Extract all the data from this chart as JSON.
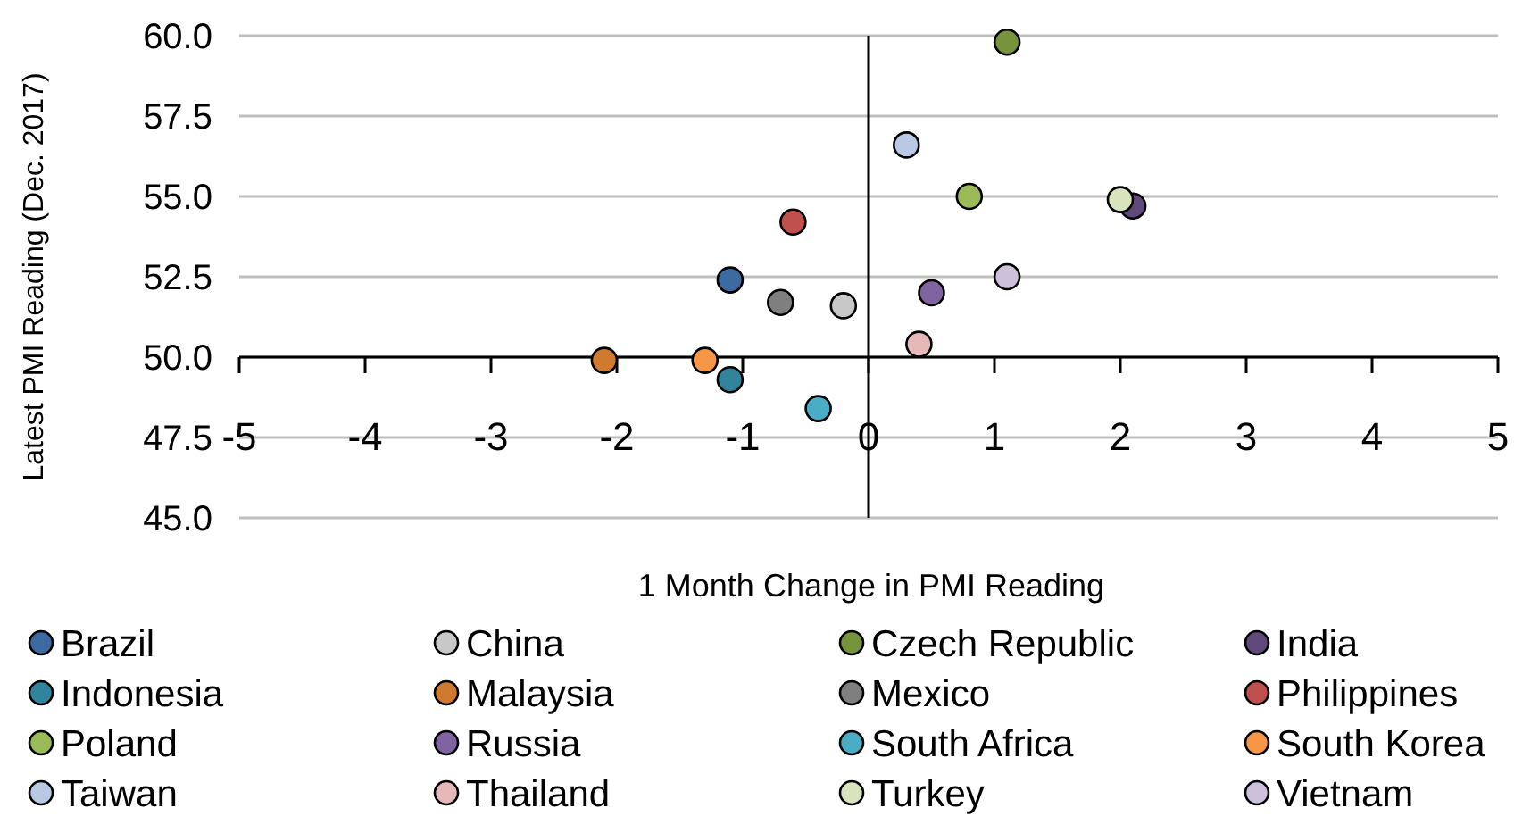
{
  "chart_data": {
    "type": "scatter",
    "xlabel": "1 Month Change in PMI Reading",
    "ylabel": "Latest PMI Reading (Dec. 2017)",
    "xlim": [
      -5,
      5
    ],
    "ylim": [
      45,
      60
    ],
    "xticks": [
      -5,
      -4,
      -3,
      -2,
      -1,
      0,
      1,
      2,
      3,
      4,
      5
    ],
    "yticks": [
      {
        "value": 45,
        "label": "45.0"
      },
      {
        "value": 47.5,
        "label": "47.5"
      },
      {
        "value": 50,
        "label": "50.0"
      },
      {
        "value": 52.5,
        "label": "52.5"
      },
      {
        "value": 55,
        "label": "55.0"
      },
      {
        "value": 57.5,
        "label": "57.5"
      },
      {
        "value": 60,
        "label": "60.0"
      }
    ],
    "grid": "y",
    "legend": "bottom",
    "marker": "circle",
    "series": [
      {
        "name": "Brazil",
        "color": "#3d6aa0",
        "x": [
          -1.1
        ],
        "values": [
          52.4
        ]
      },
      {
        "name": "China",
        "color": "#c8c8c8",
        "x": [
          -0.2
        ],
        "values": [
          51.6
        ]
      },
      {
        "name": "Czech Republic",
        "color": "#77933c",
        "x": [
          1.1
        ],
        "values": [
          59.8
        ]
      },
      {
        "name": "India",
        "color": "#604a7b",
        "x": [
          2.1
        ],
        "values": [
          54.7
        ]
      },
      {
        "name": "Indonesia",
        "color": "#31849b",
        "x": [
          -1.1
        ],
        "values": [
          49.3
        ]
      },
      {
        "name": "Malaysia",
        "color": "#d07a30",
        "x": [
          -2.1
        ],
        "values": [
          49.9
        ]
      },
      {
        "name": "Mexico",
        "color": "#7f7f7f",
        "x": [
          -0.7
        ],
        "values": [
          51.7
        ]
      },
      {
        "name": "Philippines",
        "color": "#c0504d",
        "x": [
          -0.6
        ],
        "values": [
          54.2
        ]
      },
      {
        "name": "Poland",
        "color": "#9bbb59",
        "x": [
          0.8
        ],
        "values": [
          55.0
        ]
      },
      {
        "name": "Russia",
        "color": "#8064a2",
        "x": [
          0.5
        ],
        "values": [
          52.0
        ]
      },
      {
        "name": "South Africa",
        "color": "#4bacc6",
        "x": [
          -0.4
        ],
        "values": [
          48.4
        ]
      },
      {
        "name": "South Korea",
        "color": "#f79646",
        "x": [
          -1.3
        ],
        "values": [
          49.9
        ]
      },
      {
        "name": "Taiwan",
        "color": "#b9c9e4",
        "x": [
          0.3
        ],
        "values": [
          56.6
        ]
      },
      {
        "name": "Thailand",
        "color": "#e6b9b8",
        "x": [
          0.4
        ],
        "values": [
          50.4
        ]
      },
      {
        "name": "Turkey",
        "color": "#d7e4bd",
        "x": [
          2.0
        ],
        "values": [
          54.9
        ]
      },
      {
        "name": "Vietnam",
        "color": "#ccc0da",
        "x": [
          1.1
        ],
        "values": [
          52.5
        ]
      }
    ]
  }
}
